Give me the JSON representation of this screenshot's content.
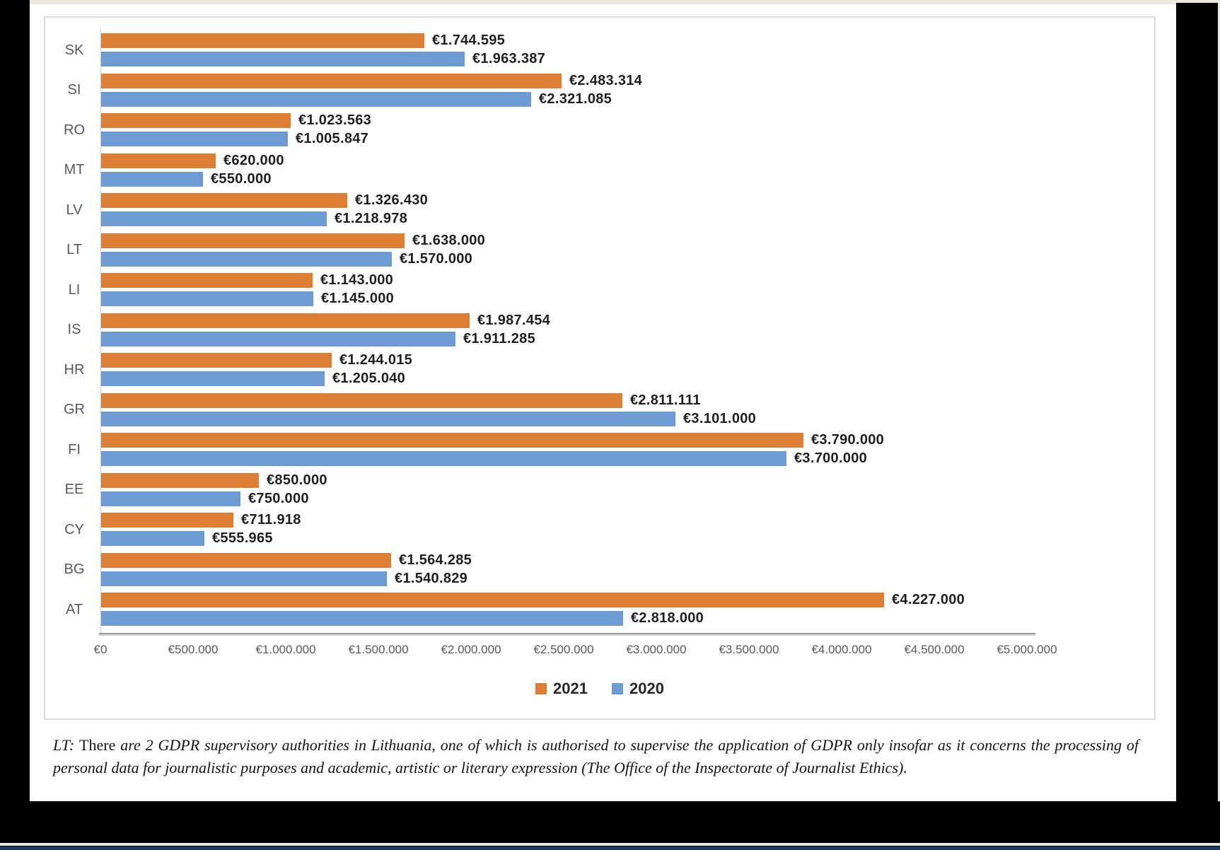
{
  "chart_data": {
    "type": "bar",
    "orientation": "horizontal",
    "title": "",
    "xlabel": "",
    "ylabel": "",
    "xlim": [
      0,
      5000000
    ],
    "grid": false,
    "legend_position": "bottom",
    "categories": [
      "SK",
      "SI",
      "RO",
      "MT",
      "LV",
      "LT",
      "LI",
      "IS",
      "HR",
      "GR",
      "FI",
      "EE",
      "CY",
      "BG",
      "AT"
    ],
    "series": [
      {
        "name": "2021",
        "color": "#dd7e35",
        "values": [
          1744595,
          2483314,
          1023563,
          620000,
          1326430,
          1638000,
          1143000,
          1987454,
          1244015,
          2811111,
          3790000,
          850000,
          711918,
          1564285,
          4227000
        ],
        "labels": [
          "€1.744.595",
          "€2.483.314",
          "€1.023.563",
          "€620.000",
          "€1.326.430",
          "€1.638.000",
          "€1.143.000",
          "€1.987.454",
          "€1.244.015",
          "€2.811.111",
          "€3.790.000",
          "€850.000",
          "€711.918",
          "€1.564.285",
          "€4.227.000"
        ]
      },
      {
        "name": "2020",
        "color": "#6d9bd3",
        "values": [
          1963387,
          2321085,
          1005847,
          550000,
          1218978,
          1570000,
          1145000,
          1911285,
          1205040,
          3101000,
          3700000,
          750000,
          555965,
          1540829,
          2818000
        ],
        "labels": [
          "€1.963.387",
          "€2.321.085",
          "€1.005.847",
          "€550.000",
          "€1.218.978",
          "€1.570.000",
          "€1.145.000",
          "€1.911.285",
          "€1.205.040",
          "€3.101.000",
          "€3.700.000",
          "€750.000",
          "€555.965",
          "€1.540.829",
          "€2.818.000"
        ]
      }
    ],
    "x_ticks": [
      "€0",
      "€500.000",
      "€1.000.000",
      "€1.500.000",
      "€2.000.000",
      "€2.500.000",
      "€3.000.000",
      "€3.500.000",
      "€4.000.000",
      "€4.500.000",
      "€5.000.000"
    ]
  },
  "footnote": {
    "prefix": "LT: ",
    "mid": "There ",
    "rest": "are 2 GDPR supervisory authorities in Lithuania, one of which is authorised to supervise the application of GDPR only insofar as it concerns the processing of personal data for journalistic purposes and academic, artistic or literary expression (The Office of the Inspectorate of Journalist Ethics)."
  },
  "colors": {
    "series_2021": "#dd7e35",
    "series_2020": "#6d9bd3",
    "axis_line": "#9a9a9a",
    "label_text": "#1f1f1f",
    "tick_text": "#595959",
    "page_border_black": "#000000",
    "bottom_accent_blue": "#1f3864",
    "margin_beige": "#ece8df"
  }
}
